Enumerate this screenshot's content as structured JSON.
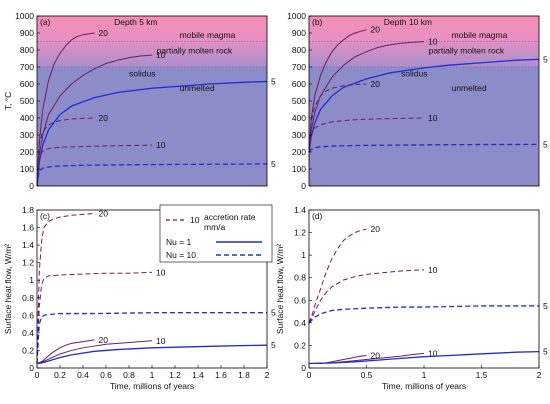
{
  "colors": {
    "magma_top": "#f58fb3",
    "magma_bottom": "#e891c6",
    "unmelted": "#8c8cc9",
    "blue": "#1f2ed6",
    "dark_magenta": "#6b1f5e",
    "axis": "#000000",
    "threshold_line": "#8a4b8a"
  },
  "legend": {
    "title_value": "10",
    "title_line1": "accretion rate",
    "title_line2": "mm/a",
    "nu1": "Nu = 1",
    "nu10": "Nu = 10"
  },
  "chart_data": [
    {
      "id": "a",
      "type": "line",
      "panel_label": "(a)",
      "title": "Depth 5 km",
      "ylabel": "T, °C",
      "xlabel": "",
      "xlim": [
        0,
        2
      ],
      "ylim": [
        0,
        1000
      ],
      "grid": false,
      "yticks": [
        "0",
        "100",
        "200",
        "300",
        "400",
        "500",
        "600",
        "700",
        "800",
        "900",
        "1000"
      ],
      "xticks": [],
      "bands": {
        "solidus": 700,
        "magma": 850
      },
      "band_labels": {
        "magma": "mobile magma",
        "partial": "partially molten rock",
        "solidus": "solidus",
        "unmelted": "unmelted"
      },
      "series": [
        {
          "label": "20",
          "style": "solid",
          "color": "dark_magenta",
          "x": [
            0,
            0.02,
            0.05,
            0.1,
            0.15,
            0.2,
            0.25,
            0.3,
            0.35,
            0.4,
            0.45,
            0.5
          ],
          "y": [
            0,
            260,
            450,
            620,
            720,
            780,
            825,
            860,
            880,
            890,
            895,
            900
          ]
        },
        {
          "label": "10",
          "style": "solid",
          "color": "dark_magenta",
          "x": [
            0,
            0.02,
            0.05,
            0.1,
            0.2,
            0.3,
            0.4,
            0.5,
            0.6,
            0.7,
            0.8,
            0.9,
            1.0
          ],
          "y": [
            0,
            180,
            300,
            420,
            530,
            600,
            650,
            690,
            720,
            740,
            755,
            765,
            770
          ]
        },
        {
          "label": "5",
          "style": "solid",
          "color": "blue",
          "x": [
            0,
            0.02,
            0.05,
            0.1,
            0.2,
            0.3,
            0.5,
            0.7,
            1.0,
            1.2,
            1.5,
            1.8,
            2.0
          ],
          "y": [
            0,
            140,
            240,
            330,
            420,
            470,
            520,
            550,
            575,
            585,
            600,
            610,
            615
          ]
        },
        {
          "label": "20",
          "style": "dashed",
          "color": "dark_magenta",
          "x": [
            0,
            0.02,
            0.05,
            0.1,
            0.15,
            0.2,
            0.3,
            0.4,
            0.5
          ],
          "y": [
            0,
            250,
            320,
            360,
            375,
            385,
            395,
            398,
            400
          ]
        },
        {
          "label": "10",
          "style": "dashed",
          "color": "dark_magenta",
          "x": [
            0,
            0.02,
            0.05,
            0.1,
            0.2,
            0.4,
            0.6,
            0.8,
            1.0
          ],
          "y": [
            0,
            170,
            205,
            220,
            228,
            232,
            236,
            238,
            240
          ]
        },
        {
          "label": "5",
          "style": "dashed",
          "color": "blue",
          "x": [
            0,
            0.02,
            0.05,
            0.1,
            0.2,
            0.4,
            0.8,
            1.2,
            1.6,
            2.0
          ],
          "y": [
            0,
            90,
            105,
            112,
            118,
            122,
            125,
            127,
            128,
            130
          ]
        }
      ]
    },
    {
      "id": "b",
      "type": "line",
      "panel_label": "(b)",
      "title": "Depth 10 km",
      "ylabel": "",
      "xlabel": "",
      "xlim": [
        0,
        2
      ],
      "ylim": [
        0,
        1000
      ],
      "grid": false,
      "yticks": [
        "0",
        "100",
        "200",
        "300",
        "400",
        "500",
        "600",
        "700",
        "800",
        "900",
        "1000"
      ],
      "xticks": [],
      "bands": {
        "solidus": 700,
        "magma": 850
      },
      "band_labels": {
        "magma": "mobile magma",
        "partial": "partially molten rock",
        "solidus": "solidus",
        "unmelted": "unmelted"
      },
      "series": [
        {
          "label": "20",
          "style": "solid",
          "color": "dark_magenta",
          "x": [
            0,
            0.02,
            0.05,
            0.1,
            0.15,
            0.2,
            0.25,
            0.3,
            0.35,
            0.4,
            0.45,
            0.5
          ],
          "y": [
            200,
            400,
            530,
            650,
            730,
            790,
            830,
            860,
            885,
            900,
            910,
            920
          ]
        },
        {
          "label": "10",
          "style": "solid",
          "color": "dark_magenta",
          "x": [
            0,
            0.02,
            0.05,
            0.1,
            0.2,
            0.3,
            0.4,
            0.5,
            0.6,
            0.7,
            0.8,
            0.9,
            1.0
          ],
          "y": [
            200,
            330,
            430,
            530,
            640,
            710,
            760,
            790,
            815,
            830,
            840,
            845,
            850
          ]
        },
        {
          "label": "5",
          "style": "solid",
          "color": "blue",
          "x": [
            0,
            0.02,
            0.05,
            0.1,
            0.2,
            0.3,
            0.5,
            0.7,
            1.0,
            1.2,
            1.5,
            1.8,
            2.0
          ],
          "y": [
            200,
            290,
            370,
            450,
            530,
            580,
            630,
            665,
            695,
            710,
            725,
            740,
            745
          ]
        },
        {
          "label": "20",
          "style": "dashed",
          "color": "dark_magenta",
          "x": [
            0,
            0.02,
            0.05,
            0.1,
            0.15,
            0.2,
            0.3,
            0.4,
            0.5
          ],
          "y": [
            200,
            380,
            470,
            530,
            560,
            575,
            590,
            597,
            600
          ]
        },
        {
          "label": "10",
          "style": "dashed",
          "color": "dark_magenta",
          "x": [
            0,
            0.02,
            0.05,
            0.1,
            0.2,
            0.4,
            0.6,
            0.8,
            1.0
          ],
          "y": [
            200,
            300,
            340,
            360,
            378,
            390,
            395,
            398,
            400
          ]
        },
        {
          "label": "5",
          "style": "dashed",
          "color": "blue",
          "x": [
            0,
            0.02,
            0.05,
            0.1,
            0.2,
            0.4,
            0.8,
            1.2,
            1.6,
            2.0
          ],
          "y": [
            200,
            215,
            225,
            230,
            235,
            238,
            241,
            243,
            244,
            245
          ]
        }
      ]
    },
    {
      "id": "c",
      "type": "line",
      "panel_label": "(c)",
      "title": "",
      "ylabel": "Surface heat flow, W/m²",
      "xlabel": "Time, millions of years",
      "xlim": [
        0,
        2
      ],
      "ylim": [
        0,
        1.8
      ],
      "grid": false,
      "yticks": [
        "0",
        "0.2",
        "0.4",
        "0.6",
        "0.8",
        "1",
        "1.2",
        "1.4",
        "1.6",
        "1.8"
      ],
      "xticks": [
        "0",
        "0.2",
        "0.4",
        "0.6",
        "0.8",
        "1",
        "1.2",
        "1.4",
        "1.6",
        "1.8",
        "2"
      ],
      "series": [
        {
          "label": "20",
          "style": "dashed",
          "color": "dark_magenta",
          "x": [
            0,
            0.01,
            0.02,
            0.04,
            0.06,
            0.1,
            0.15,
            0.2,
            0.3,
            0.4,
            0.5
          ],
          "y": [
            0.05,
            0.6,
            1.1,
            1.45,
            1.6,
            1.67,
            1.7,
            1.72,
            1.74,
            1.75,
            1.76
          ]
        },
        {
          "label": "10",
          "style": "dashed",
          "color": "dark_magenta",
          "x": [
            0,
            0.01,
            0.02,
            0.04,
            0.06,
            0.1,
            0.2,
            0.4,
            0.6,
            0.8,
            1.0
          ],
          "y": [
            0.05,
            0.4,
            0.7,
            0.95,
            1.02,
            1.05,
            1.06,
            1.07,
            1.08,
            1.08,
            1.09
          ]
        },
        {
          "label": "5",
          "style": "dashed",
          "color": "blue",
          "x": [
            0,
            0.01,
            0.02,
            0.04,
            0.06,
            0.1,
            0.2,
            0.5,
            1.0,
            1.5,
            2.0
          ],
          "y": [
            0.05,
            0.3,
            0.5,
            0.58,
            0.6,
            0.61,
            0.62,
            0.62,
            0.63,
            0.63,
            0.63
          ]
        },
        {
          "label": "20",
          "style": "solid",
          "color": "dark_magenta",
          "x": [
            0,
            0.05,
            0.1,
            0.15,
            0.2,
            0.25,
            0.3,
            0.35,
            0.4,
            0.45,
            0.5
          ],
          "y": [
            0.05,
            0.08,
            0.14,
            0.19,
            0.23,
            0.26,
            0.28,
            0.29,
            0.3,
            0.31,
            0.32
          ]
        },
        {
          "label": "10",
          "style": "solid",
          "color": "dark_magenta",
          "x": [
            0,
            0.05,
            0.1,
            0.2,
            0.3,
            0.4,
            0.5,
            0.6,
            0.7,
            0.8,
            0.9,
            1.0
          ],
          "y": [
            0.05,
            0.07,
            0.1,
            0.16,
            0.2,
            0.23,
            0.25,
            0.27,
            0.28,
            0.29,
            0.3,
            0.31
          ]
        },
        {
          "label": "5",
          "style": "solid",
          "color": "blue",
          "x": [
            0,
            0.05,
            0.1,
            0.2,
            0.3,
            0.5,
            0.7,
            1.0,
            1.3,
            1.6,
            2.0
          ],
          "y": [
            0.05,
            0.06,
            0.08,
            0.12,
            0.15,
            0.19,
            0.21,
            0.23,
            0.24,
            0.25,
            0.26
          ]
        }
      ]
    },
    {
      "id": "d",
      "type": "line",
      "panel_label": "(d)",
      "title": "",
      "ylabel": "Surface heat flow, W/m²",
      "xlabel": "Time, millions of years",
      "xlim": [
        0,
        2
      ],
      "ylim": [
        0,
        1.4
      ],
      "grid": false,
      "yticks": [
        "0",
        "0.2",
        "0.4",
        "0.6",
        "0.8",
        "1",
        "1.2",
        "1.4"
      ],
      "xticks": [
        "0",
        "0.5",
        "1",
        "1.5",
        "2"
      ],
      "series": [
        {
          "label": "20",
          "style": "dashed",
          "color": "dark_magenta",
          "x": [
            0,
            0.01,
            0.03,
            0.05,
            0.1,
            0.15,
            0.2,
            0.25,
            0.3,
            0.35,
            0.4,
            0.45,
            0.5
          ],
          "y": [
            0.4,
            0.43,
            0.48,
            0.55,
            0.7,
            0.85,
            0.97,
            1.06,
            1.13,
            1.17,
            1.2,
            1.22,
            1.23
          ]
        },
        {
          "label": "10",
          "style": "dashed",
          "color": "dark_magenta",
          "x": [
            0,
            0.02,
            0.05,
            0.1,
            0.15,
            0.2,
            0.3,
            0.4,
            0.5,
            0.6,
            0.7,
            0.8,
            1.0
          ],
          "y": [
            0.4,
            0.43,
            0.5,
            0.6,
            0.67,
            0.72,
            0.78,
            0.81,
            0.83,
            0.84,
            0.85,
            0.86,
            0.87
          ]
        },
        {
          "label": "5",
          "style": "dashed",
          "color": "blue",
          "x": [
            0,
            0.02,
            0.05,
            0.1,
            0.2,
            0.3,
            0.5,
            0.8,
            1.0,
            1.5,
            2.0
          ],
          "y": [
            0.4,
            0.42,
            0.45,
            0.48,
            0.51,
            0.52,
            0.53,
            0.54,
            0.54,
            0.55,
            0.55
          ]
        },
        {
          "label": "20",
          "style": "solid",
          "color": "dark_magenta",
          "x": [
            0,
            0.1,
            0.15,
            0.2,
            0.25,
            0.3,
            0.35,
            0.4,
            0.45,
            0.5
          ],
          "y": [
            0.04,
            0.04,
            0.045,
            0.055,
            0.065,
            0.075,
            0.085,
            0.095,
            0.105,
            0.11
          ]
        },
        {
          "label": "10",
          "style": "solid",
          "color": "dark_magenta",
          "x": [
            0,
            0.2,
            0.3,
            0.4,
            0.5,
            0.6,
            0.7,
            0.8,
            0.9,
            1.0
          ],
          "y": [
            0.04,
            0.045,
            0.055,
            0.065,
            0.075,
            0.085,
            0.095,
            0.105,
            0.12,
            0.13
          ]
        },
        {
          "label": "5",
          "style": "solid",
          "color": "blue",
          "x": [
            0,
            0.2,
            0.4,
            0.6,
            0.8,
            1.0,
            1.2,
            1.4,
            1.6,
            1.8,
            2.0
          ],
          "y": [
            0.04,
            0.045,
            0.055,
            0.07,
            0.085,
            0.1,
            0.11,
            0.12,
            0.13,
            0.14,
            0.145
          ]
        }
      ]
    }
  ]
}
